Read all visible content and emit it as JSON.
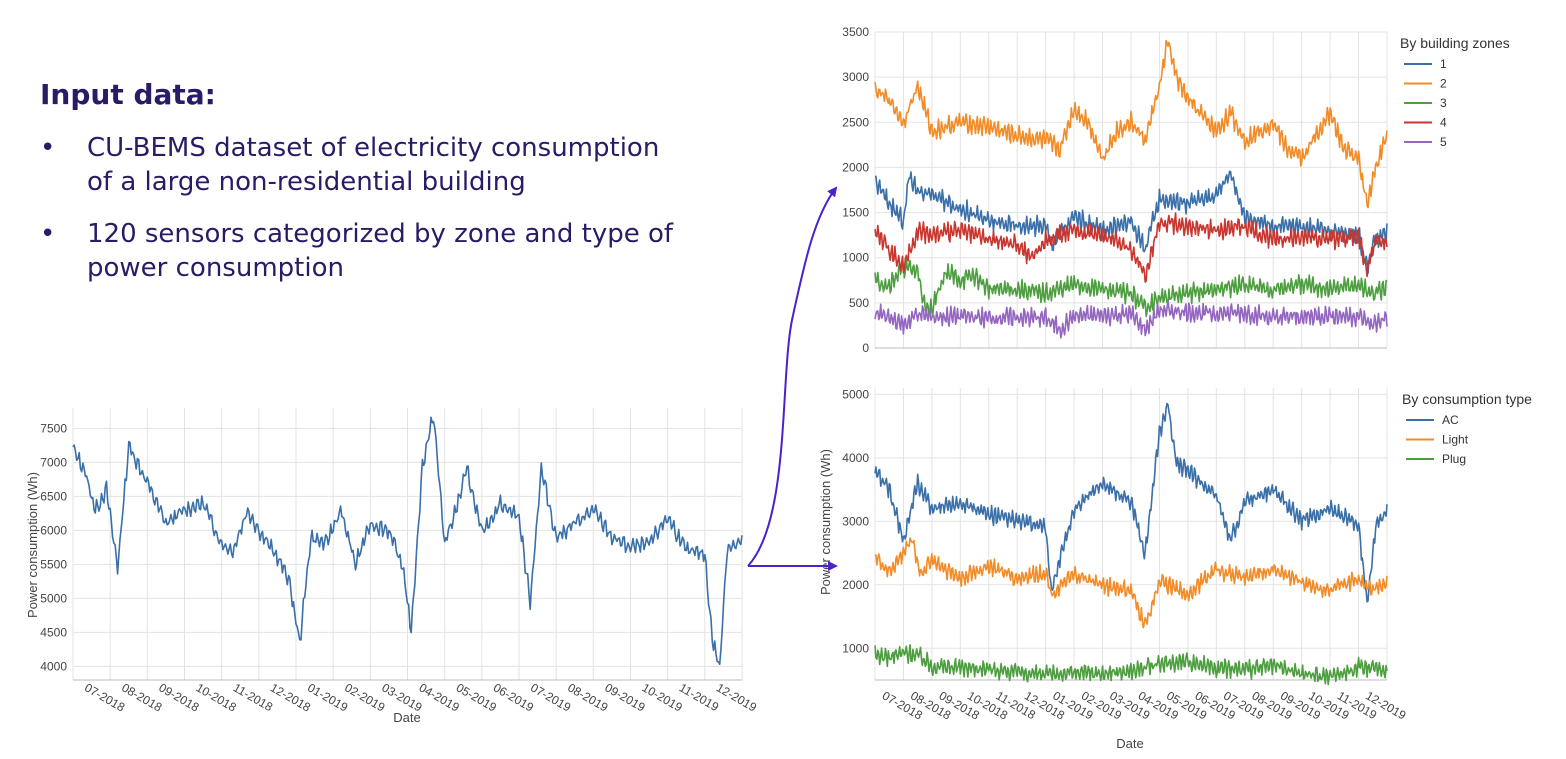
{
  "intro": {
    "title": "Input data:",
    "bullets": [
      {
        "marker": "•",
        "lines": [
          "CU-BEMS dataset of electricity consumption",
          "of a large non-residential building"
        ]
      },
      {
        "marker": "•",
        "lines": [
          "120 sensors categorized by zone and type of",
          "power consumption"
        ]
      }
    ]
  },
  "colors": {
    "text": "#2b1a66",
    "arrow": "#4b22c9",
    "grid": "#e3e3e3",
    "series": {
      "blue": "#3a6fa8",
      "orange": "#f28c28",
      "green": "#4c9e3f",
      "red": "#c8372f",
      "purple": "#9466c0"
    }
  },
  "chart_data": [
    {
      "id": "total",
      "type": "line",
      "xlabel": "Date",
      "ylabel": "Power consumption (Wh)",
      "ylim": [
        3800,
        7800
      ],
      "yticks": [
        4000,
        4500,
        5000,
        5500,
        6000,
        6500,
        7000,
        7500
      ],
      "x_ticks": [
        "07-2018",
        "08-2018",
        "09-2018",
        "10-2018",
        "11-2018",
        "12-2018",
        "01-2019",
        "02-2019",
        "03-2019",
        "04-2019",
        "05-2019",
        "06-2019",
        "07-2019",
        "08-2019",
        "09-2019",
        "10-2019",
        "11-2019",
        "12-2019"
      ],
      "x_range_months": [
        0,
        18
      ],
      "grid": true,
      "series": [
        {
          "color": "#3a6fa8",
          "x": [
            0,
            0.3,
            0.6,
            0.9,
            1.2,
            1.5,
            2.0,
            2.5,
            3.0,
            3.5,
            4.0,
            4.3,
            4.7,
            5.0,
            5.5,
            5.8,
            6.1,
            6.4,
            6.8,
            7.2,
            7.6,
            8.0,
            8.5,
            8.9,
            9.1,
            9.4,
            9.7,
            10.0,
            10.3,
            10.6,
            11.0,
            11.5,
            12.0,
            12.3,
            12.6,
            13.0,
            13.5,
            14.0,
            14.5,
            15.0,
            15.5,
            16.0,
            16.5,
            17.0,
            17.2,
            17.4,
            17.6,
            18.0
          ],
          "values": [
            7200,
            6900,
            6300,
            6600,
            5450,
            7250,
            6700,
            6100,
            6300,
            6400,
            5800,
            5700,
            6300,
            6000,
            5600,
            5300,
            4350,
            5900,
            5800,
            6300,
            5500,
            6100,
            6000,
            5400,
            4500,
            6950,
            7700,
            5800,
            6300,
            6900,
            5950,
            6400,
            6200,
            4950,
            6900,
            5900,
            6100,
            6300,
            5900,
            5750,
            5800,
            6200,
            5700,
            5650,
            4400,
            3980,
            5750,
            5850
          ]
        }
      ]
    },
    {
      "id": "zones",
      "type": "line",
      "legend_title": "By building zones",
      "legend_position": "top-right",
      "ylim": [
        0,
        3500
      ],
      "yticks": [
        0,
        500,
        1000,
        1500,
        2000,
        2500,
        3000,
        3500
      ],
      "x_range_months": [
        0,
        18
      ],
      "grid": true,
      "series": [
        {
          "name": "1",
          "color": "#3a6fa8",
          "x": [
            0,
            0.5,
            1,
            1.2,
            1.5,
            2,
            3,
            4,
            5,
            6,
            6.2,
            7,
            8,
            9,
            9.5,
            10,
            11,
            12,
            12.5,
            13,
            14,
            15,
            16,
            17,
            17.3,
            17.6,
            18
          ],
          "values": [
            1850,
            1600,
            1400,
            1900,
            1750,
            1700,
            1550,
            1400,
            1350,
            1350,
            1150,
            1450,
            1300,
            1400,
            1100,
            1650,
            1600,
            1700,
            1950,
            1450,
            1350,
            1350,
            1300,
            1250,
            900,
            1200,
            1300
          ]
        },
        {
          "name": "2",
          "color": "#f28c28",
          "x": [
            0,
            0.5,
            1,
            1.5,
            2,
            3,
            4,
            5,
            6,
            6.5,
            7,
            7.5,
            8,
            8.5,
            9,
            9.5,
            10,
            10.3,
            10.6,
            11,
            12,
            12.5,
            13,
            14,
            14.5,
            15,
            16,
            16.5,
            17,
            17.3,
            17.6,
            18
          ],
          "values": [
            2850,
            2750,
            2500,
            2900,
            2400,
            2500,
            2450,
            2350,
            2300,
            2200,
            2650,
            2500,
            2100,
            2400,
            2500,
            2300,
            2900,
            3400,
            3000,
            2750,
            2400,
            2600,
            2300,
            2500,
            2200,
            2100,
            2600,
            2200,
            2100,
            1600,
            2000,
            2350
          ]
        },
        {
          "name": "3",
          "color": "#4c9e3f",
          "x": [
            0,
            0.5,
            1,
            1.5,
            1.8,
            2,
            2.5,
            3,
            3.5,
            4,
            5,
            6,
            7,
            8,
            9,
            9.5,
            10,
            11,
            12,
            13,
            14,
            15,
            16,
            17,
            17.5,
            18
          ],
          "values": [
            750,
            700,
            900,
            850,
            400,
            450,
            850,
            750,
            800,
            650,
            650,
            600,
            700,
            650,
            600,
            450,
            550,
            600,
            650,
            700,
            650,
            700,
            650,
            700,
            600,
            650
          ]
        },
        {
          "name": "4",
          "color": "#c8372f",
          "x": [
            0,
            0.5,
            1,
            1.5,
            2,
            3,
            4,
            5,
            5.5,
            6,
            7,
            8,
            9,
            9.5,
            10,
            11,
            12,
            13,
            14,
            15,
            16,
            17,
            17.3,
            17.6,
            18
          ],
          "values": [
            1300,
            1100,
            900,
            1300,
            1250,
            1300,
            1200,
            1150,
            1000,
            1200,
            1300,
            1250,
            1100,
            800,
            1400,
            1350,
            1300,
            1350,
            1200,
            1250,
            1200,
            1250,
            850,
            1200,
            1150
          ]
        },
        {
          "name": "5",
          "color": "#9466c0",
          "x": [
            0,
            0.5,
            1,
            1.5,
            2,
            3,
            4,
            5,
            6,
            6.5,
            7,
            8,
            9,
            9.5,
            10,
            11,
            12,
            13,
            14,
            15,
            16,
            17,
            17.5,
            18
          ],
          "values": [
            380,
            350,
            250,
            380,
            340,
            350,
            330,
            340,
            330,
            200,
            350,
            360,
            370,
            200,
            420,
            400,
            380,
            390,
            330,
            350,
            360,
            350,
            250,
            350
          ]
        }
      ]
    },
    {
      "id": "types",
      "type": "line",
      "legend_title": "By consumption type",
      "legend_position": "top-right",
      "xlabel": "Date",
      "ylabel": "Power consumption (Wh)",
      "ylim": [
        500,
        5100
      ],
      "yticks": [
        1000,
        2000,
        3000,
        4000,
        5000
      ],
      "x_ticks": [
        "07-2018",
        "08-2018",
        "09-2018",
        "10-2018",
        "11-2018",
        "12-2018",
        "01-2019",
        "02-2019",
        "03-2019",
        "04-2019",
        "05-2019",
        "06-2019",
        "07-2019",
        "08-2019",
        "09-2019",
        "10-2019",
        "11-2019",
        "12-2019"
      ],
      "x_range_months": [
        0,
        18
      ],
      "grid": true,
      "series": [
        {
          "name": "AC",
          "color": "#3a6fa8",
          "x": [
            0,
            0.5,
            1,
            1.5,
            2,
            3,
            4,
            5,
            6,
            6.2,
            7,
            8,
            9,
            9.5,
            10,
            10.3,
            10.6,
            11,
            12,
            12.5,
            13,
            14,
            15,
            16,
            17,
            17.3,
            17.6,
            18
          ],
          "values": [
            3800,
            3500,
            2700,
            3600,
            3200,
            3300,
            3100,
            3000,
            2900,
            1900,
            3200,
            3600,
            3300,
            2500,
            4400,
            4850,
            3900,
            3800,
            3400,
            2700,
            3300,
            3500,
            3000,
            3200,
            2950,
            1700,
            2900,
            3150
          ]
        },
        {
          "name": "Light",
          "color": "#f28c28",
          "x": [
            0,
            0.5,
            1,
            1.3,
            1.6,
            2,
            3,
            4,
            5,
            6,
            6.2,
            7,
            8,
            9,
            9.5,
            10,
            11,
            12,
            13,
            14,
            15,
            16,
            17,
            17.5,
            18
          ],
          "values": [
            2450,
            2200,
            2500,
            2750,
            2150,
            2400,
            2100,
            2300,
            2100,
            2200,
            1850,
            2150,
            2000,
            1900,
            1350,
            2050,
            1850,
            2250,
            2100,
            2250,
            2050,
            1900,
            2100,
            1950,
            2050
          ]
        },
        {
          "name": "Plug",
          "color": "#4c9e3f",
          "x": [
            0,
            0.5,
            1,
            1.5,
            2,
            3,
            4,
            5,
            6,
            7,
            8,
            9,
            10,
            11,
            12,
            13,
            14,
            15,
            16,
            17,
            18
          ],
          "values": [
            900,
            850,
            930,
            900,
            720,
            700,
            680,
            620,
            580,
            620,
            600,
            640,
            750,
            800,
            700,
            660,
            720,
            600,
            560,
            700,
            660
          ]
        }
      ]
    }
  ]
}
